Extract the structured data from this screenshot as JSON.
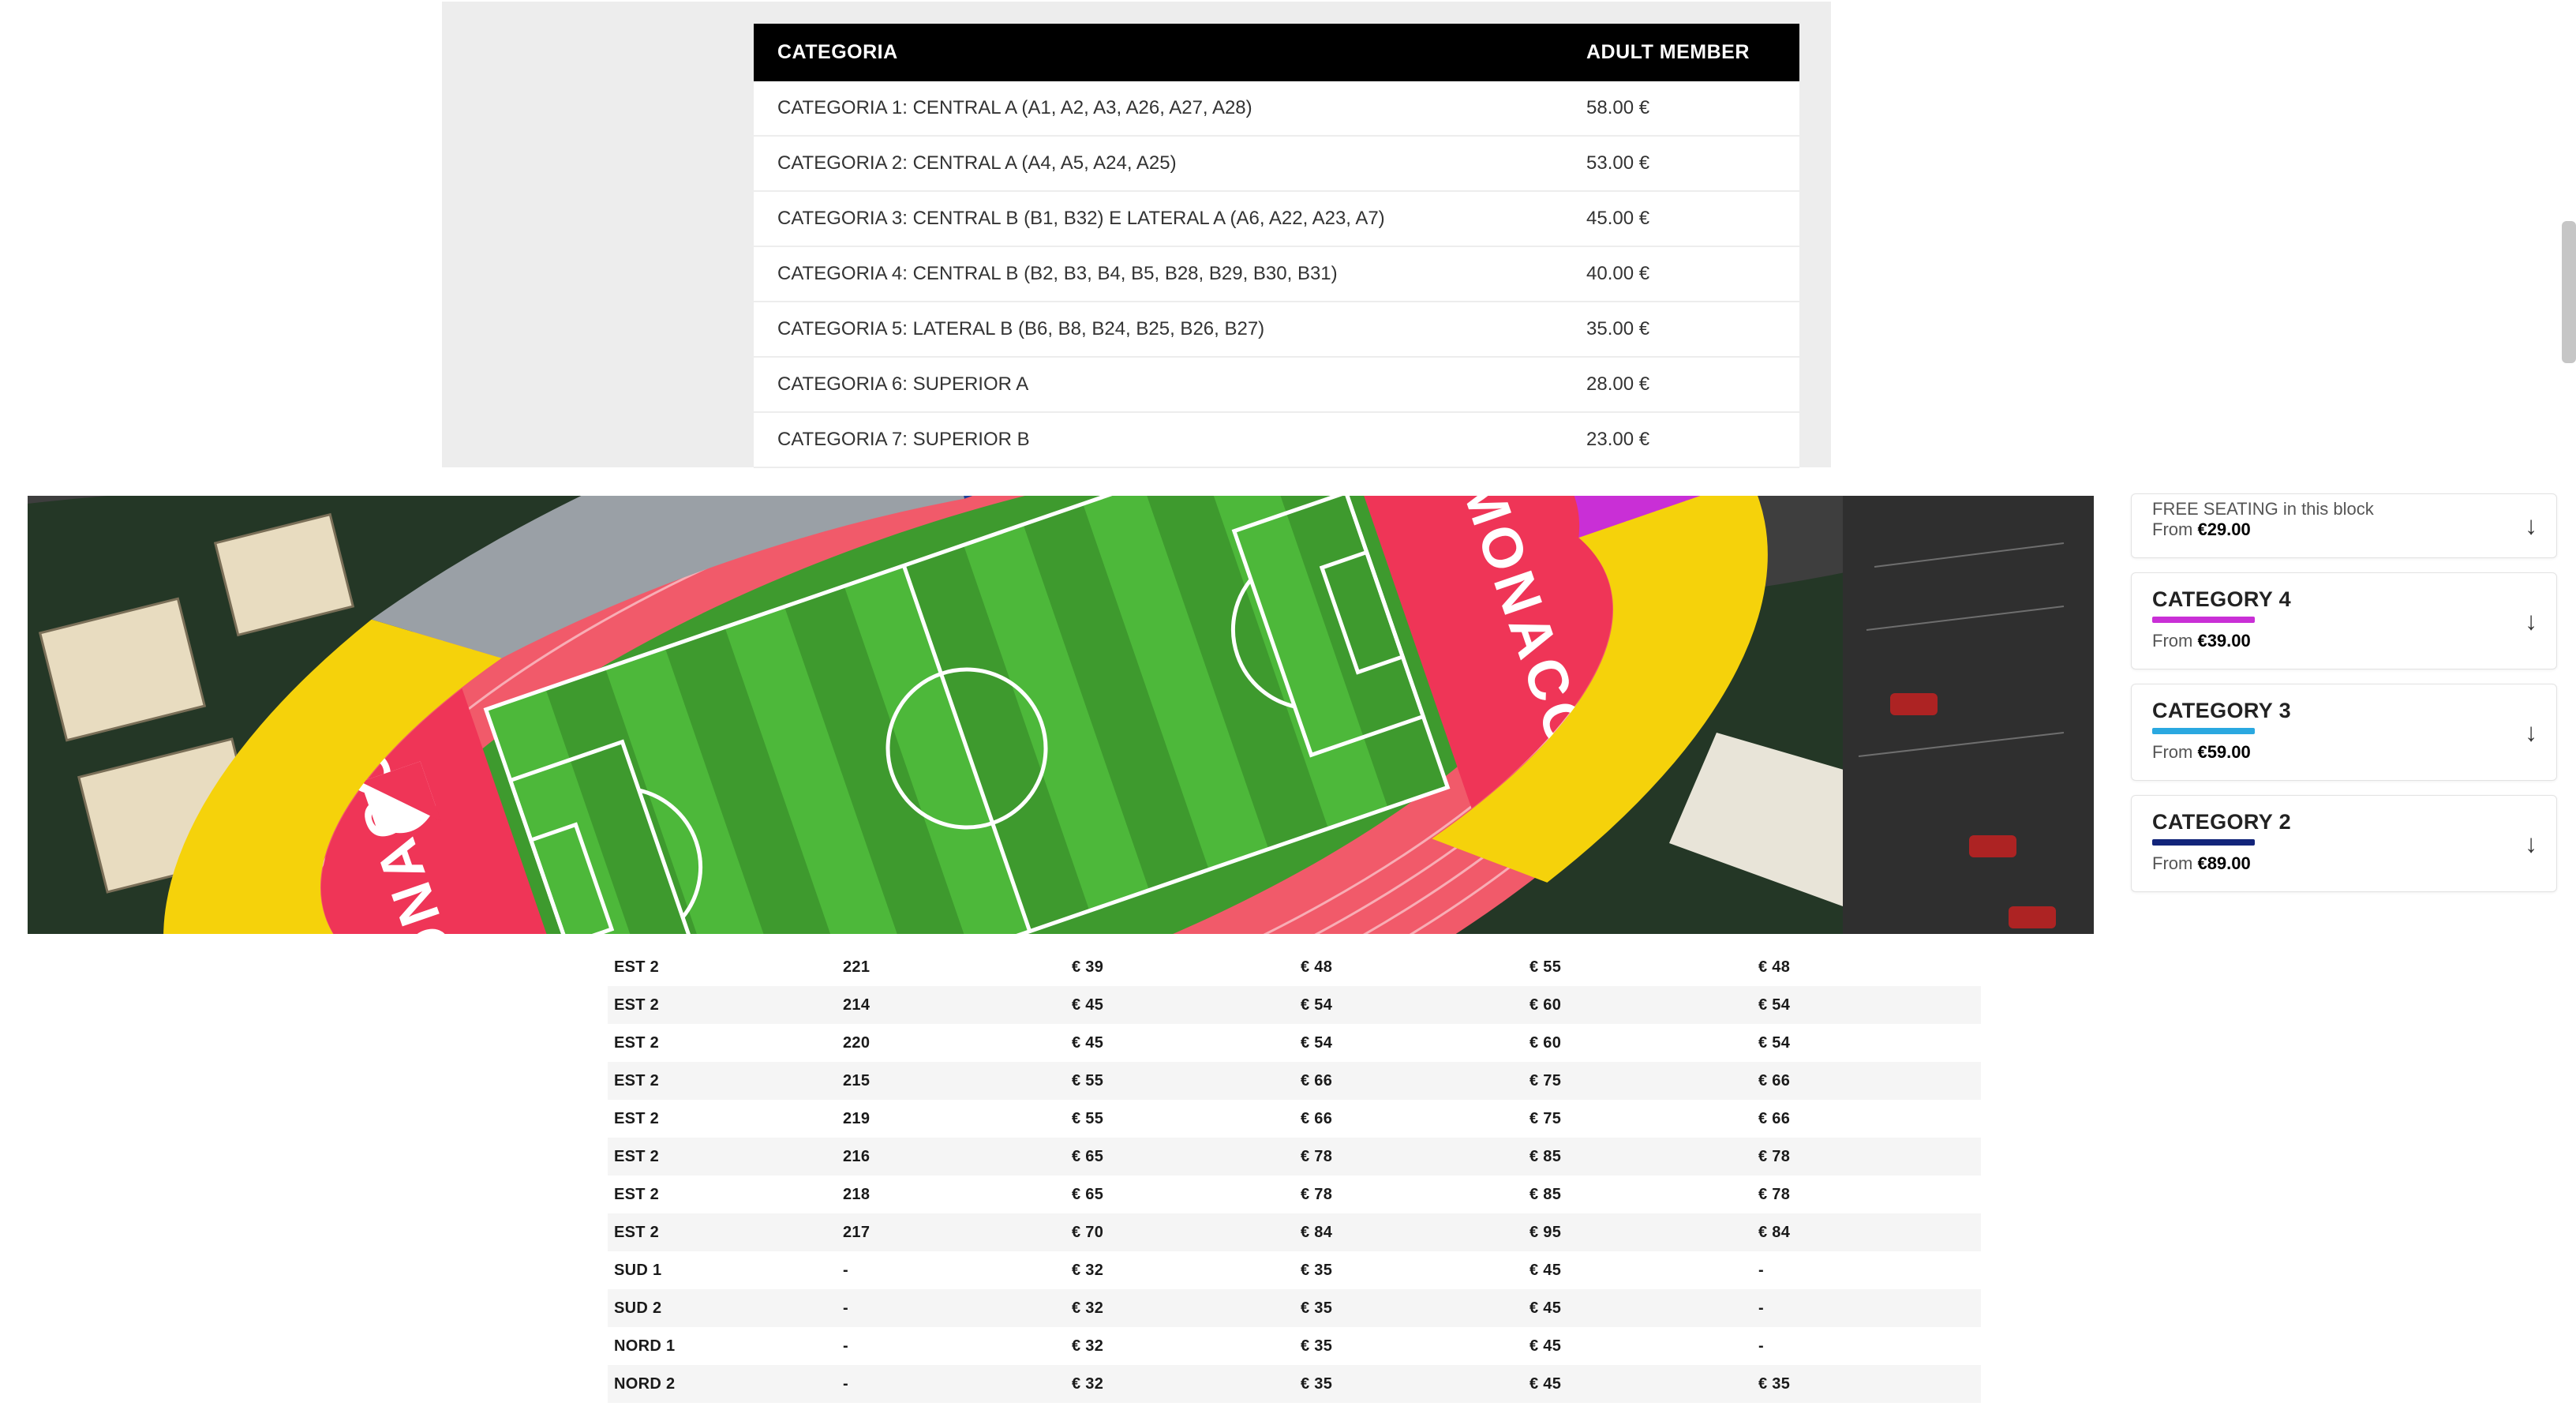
{
  "top_table": {
    "headers": [
      "CATEGORIA",
      "ADULT MEMBER"
    ],
    "rows": [
      [
        "CATEGORIA 1: CENTRAL A (A1, A2, A3, A26, A27, A28)",
        "58.00 €"
      ],
      [
        "CATEGORIA 2: CENTRAL A (A4, A5, A24, A25)",
        "53.00 €"
      ],
      [
        "CATEGORIA 3: CENTRAL B (B1, B32) E LATERAL A (A6, A22, A23, A7)",
        "45.00 €"
      ],
      [
        "CATEGORIA 4: CENTRAL B (B2, B3, B4, B5, B28, B29, B30, B31)",
        "40.00 €"
      ],
      [
        "CATEGORIA 5: LATERAL B (B6, B8, B24, B25, B26, B27)",
        "35.00 €"
      ],
      [
        "CATEGORIA 6: SUPERIOR A",
        "28.00 €"
      ],
      [
        "CATEGORIA 7: SUPERIOR B",
        "23.00 €"
      ]
    ],
    "header_bg": "#000000",
    "header_fg": "#ffffff",
    "row_bg": "#ffffff",
    "row_border": "#ededed",
    "block_bg": "#ededed"
  },
  "stadium": {
    "surround_color": "#243726",
    "road_color": "#3e3e3e",
    "building_fill": "#9a8f80",
    "building_roof": "#e8dcc0",
    "corner_roof": "#e8e4d8",
    "track_color": "#f15a6a",
    "track_lane": "#ffffff",
    "pitch_color_a": "#3e9a2e",
    "pitch_color_b": "#4db83a",
    "pitch_line": "#ffffff",
    "endzone_color": "#ef3557",
    "endzone_text": "AS MONACO",
    "logo_text": "⚜",
    "sector_yellow": "#f5d20b",
    "sector_magenta": "#c92fd6",
    "sector_blue": "#2585e6",
    "sector_navy": "#1a3f99",
    "stand_grey": "#9aa0a6"
  },
  "sidebar": {
    "cards": [
      {
        "kind": "sub",
        "line1": "FREE SEATING in this block",
        "from_label": "From",
        "price": "€29.00"
      },
      {
        "kind": "full",
        "title": "CATEGORY 4",
        "swatch": "#c92fd6",
        "from_label": "From",
        "price": "€39.00"
      },
      {
        "kind": "full",
        "title": "CATEGORY 3",
        "swatch": "#2aa8e0",
        "from_label": "From",
        "price": "€59.00"
      },
      {
        "kind": "full",
        "title": "CATEGORY 2",
        "swatch": "#12247a",
        "from_label": "From",
        "price": "€89.00"
      }
    ]
  },
  "bottom_grid": {
    "stripe_even": "#f5f5f5",
    "stripe_odd": "#ffffff",
    "rows": [
      [
        "EST 2",
        "221",
        "€ 39",
        "€ 48",
        "€ 55",
        "€ 48"
      ],
      [
        "EST 2",
        "214",
        "€ 45",
        "€ 54",
        "€ 60",
        "€ 54"
      ],
      [
        "EST 2",
        "220",
        "€ 45",
        "€ 54",
        "€ 60",
        "€ 54"
      ],
      [
        "EST 2",
        "215",
        "€ 55",
        "€ 66",
        "€ 75",
        "€ 66"
      ],
      [
        "EST 2",
        "219",
        "€ 55",
        "€ 66",
        "€ 75",
        "€ 66"
      ],
      [
        "EST 2",
        "216",
        "€ 65",
        "€ 78",
        "€ 85",
        "€ 78"
      ],
      [
        "EST 2",
        "218",
        "€ 65",
        "€ 78",
        "€ 85",
        "€ 78"
      ],
      [
        "EST 2",
        "217",
        "€ 70",
        "€ 84",
        "€ 95",
        "€ 84"
      ],
      [
        "SUD 1",
        "-",
        "€ 32",
        "€ 35",
        "€ 45",
        "-"
      ],
      [
        "SUD 2",
        "-",
        "€ 32",
        "€ 35",
        "€ 45",
        "-"
      ],
      [
        "NORD 1",
        "-",
        "€ 32",
        "€ 35",
        "€ 45",
        "-"
      ],
      [
        "NORD 2",
        "-",
        "€ 32",
        "€ 35",
        "€ 45",
        "€ 35"
      ]
    ]
  }
}
